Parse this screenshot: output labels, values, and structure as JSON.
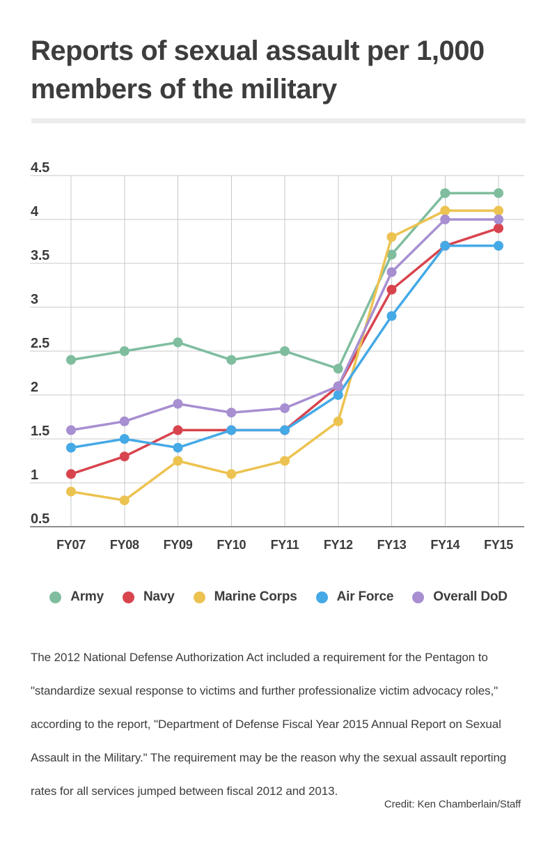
{
  "header": {
    "title": "Reports of sexual assault per 1,000 members of the military"
  },
  "chart_data": {
    "type": "line",
    "title": "Reports of sexual assault per 1,000 members of the military",
    "categories": [
      "FY07",
      "FY08",
      "FY09",
      "FY10",
      "FY11",
      "FY12",
      "FY13",
      "FY14",
      "FY15"
    ],
    "series": [
      {
        "name": "Army",
        "color": "#7FBD9E",
        "values": [
          2.4,
          2.5,
          2.6,
          2.4,
          2.5,
          2.3,
          3.6,
          4.3,
          4.3
        ]
      },
      {
        "name": "Navy",
        "color": "#D8444E",
        "values": [
          1.1,
          1.3,
          1.6,
          1.6,
          1.6,
          2.1,
          3.2,
          3.7,
          3.9
        ]
      },
      {
        "name": "Marine Corps",
        "color": "#ECC351",
        "values": [
          0.9,
          0.8,
          1.25,
          1.1,
          1.25,
          1.7,
          3.8,
          4.1,
          4.1
        ]
      },
      {
        "name": "Air Force",
        "color": "#45A9E6",
        "values": [
          1.4,
          1.5,
          1.4,
          1.6,
          1.6,
          2.0,
          2.9,
          3.7,
          3.7
        ]
      },
      {
        "name": "Overall DoD",
        "color": "#A78FD1",
        "values": [
          1.6,
          1.7,
          1.9,
          1.8,
          1.85,
          2.1,
          3.4,
          4.0,
          4.0
        ]
      }
    ],
    "xlabel": "",
    "ylabel": "",
    "ylim": [
      0.5,
      4.5
    ],
    "yticks": [
      4.5,
      4,
      3.5,
      3,
      2.5,
      2,
      1.5,
      1,
      0.5
    ],
    "grid": true,
    "legend_position": "bottom"
  },
  "notes": {
    "body": "The 2012 National Defense Authorization Act included a requirement for the Pentagon to \"standardize sexual response to victims and further professionalize victim advocacy roles,\" according to the report, \"Department of Defense Fiscal Year 2015 Annual Report on Sexual Assault in the Military.\" The requirement may be the reason why the sexual assault reporting rates for all services jumped between fiscal 2012 and 2013.",
    "credit": "Credit: Ken Chamberlain/Staff"
  },
  "colors": {
    "background": "#ffffff",
    "text": "#3d3d3d",
    "gridline": "#c8c8c8",
    "axis_line": "#8d8d8d",
    "divider": "#ececec"
  }
}
